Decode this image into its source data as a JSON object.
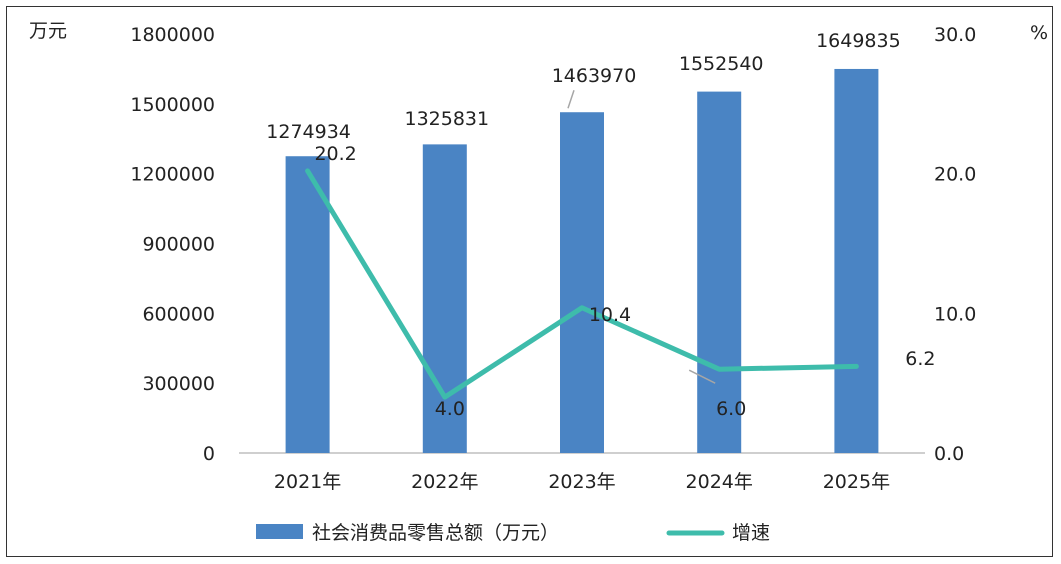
{
  "chart_data": {
    "type": "bar",
    "categories": [
      "2021年",
      "2022年",
      "2023年",
      "2024年",
      "2025年"
    ],
    "series": [
      {
        "name": "社会消费品零售总额（万元）",
        "type": "bar",
        "axis": "left",
        "values": [
          1274934,
          1325831,
          1463970,
          1552540,
          1649835
        ],
        "labels": [
          "1274934",
          "1325831",
          "1463970",
          "1552540",
          "1649835"
        ]
      },
      {
        "name": "增速",
        "type": "line",
        "axis": "right",
        "values": [
          20.2,
          4.0,
          10.4,
          6.0,
          6.2
        ],
        "labels": [
          "20.2",
          "4.0",
          "10.4",
          "6.0",
          "6.2"
        ]
      }
    ],
    "y_left": {
      "unit": "万元",
      "range": [
        0,
        1800000
      ],
      "ticks": [
        "0",
        "300000",
        "600000",
        "900000",
        "1200000",
        "1500000",
        "1800000"
      ]
    },
    "y_right": {
      "unit": "%",
      "range": [
        0,
        30
      ],
      "ticks": [
        "0.0",
        "10.0",
        "20.0",
        "30.0"
      ]
    },
    "legend_position": "bottom",
    "grid": false,
    "colors": {
      "bar": "#4a84c4",
      "line": "#3ebcab"
    }
  }
}
